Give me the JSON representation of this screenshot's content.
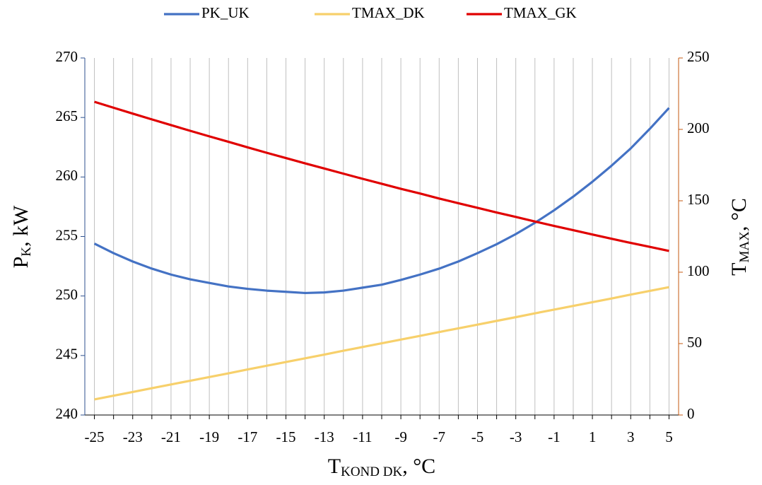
{
  "chart_data": {
    "type": "line",
    "legend_position": "top",
    "x_label": {
      "main": "T",
      "sub": "KOND DK",
      "rest": ", °C"
    },
    "y_label": {
      "main": "P",
      "sub": "K",
      "rest": ", kW"
    },
    "y2_label": {
      "main": "T",
      "sub": "MAX",
      "rest": ", °C"
    },
    "x": [
      -25,
      -24,
      -23,
      -22,
      -21,
      -20,
      -19,
      -18,
      -17,
      -16,
      -15,
      -14,
      -13,
      -12,
      -11,
      -10,
      -9,
      -8,
      -7,
      -6,
      -5,
      -4,
      -3,
      -2,
      -1,
      0,
      1,
      2,
      3,
      4,
      5
    ],
    "xlim": [
      -25.5,
      5.5
    ],
    "xticks": [
      -25,
      -23,
      -21,
      -19,
      -17,
      -15,
      -13,
      -11,
      -9,
      -7,
      -5,
      -3,
      -1,
      1,
      3,
      5
    ],
    "ylim": [
      240,
      270
    ],
    "yticks": [
      240,
      245,
      250,
      255,
      260,
      265,
      270
    ],
    "y2lim": [
      0,
      250
    ],
    "y2ticks": [
      0,
      50,
      100,
      150,
      200,
      250
    ],
    "x_grid": true,
    "series": [
      {
        "name": "PK_UK",
        "color": "#4472c4",
        "axis": "y",
        "values": [
          254.4,
          253.6,
          252.9,
          252.3,
          251.8,
          251.4,
          251.1,
          250.8,
          250.6,
          250.45,
          250.35,
          250.25,
          250.3,
          250.45,
          250.7,
          250.95,
          251.35,
          251.8,
          252.3,
          252.9,
          253.6,
          254.35,
          255.2,
          256.15,
          257.2,
          258.35,
          259.6,
          260.95,
          262.4,
          264.05,
          265.8
        ]
      },
      {
        "name": "TMAX_DK",
        "color": "#f7d06b",
        "axis": "y2",
        "values": [
          10.9,
          13.5,
          16.1,
          18.8,
          21.4,
          24.0,
          26.6,
          29.2,
          31.9,
          34.5,
          37.1,
          39.7,
          42.3,
          45.0,
          47.6,
          50.2,
          52.8,
          55.4,
          58.1,
          60.7,
          63.3,
          65.9,
          68.5,
          71.2,
          73.8,
          76.4,
          79.0,
          81.6,
          84.3,
          86.9,
          89.5
        ]
      },
      {
        "name": "TMAX_GK",
        "color": "#e00000",
        "axis": "y2",
        "values": [
          219.3,
          215.15,
          211.05,
          207.0,
          203.0,
          199.0,
          195.1,
          191.3,
          187.4,
          183.6,
          179.9,
          176.2,
          172.6,
          169.0,
          165.4,
          161.9,
          158.4,
          155.1,
          151.6,
          148.3,
          145.1,
          141.8,
          138.7,
          135.5,
          132.4,
          129.4,
          126.4,
          123.4,
          120.5,
          117.7,
          114.9
        ]
      }
    ]
  }
}
